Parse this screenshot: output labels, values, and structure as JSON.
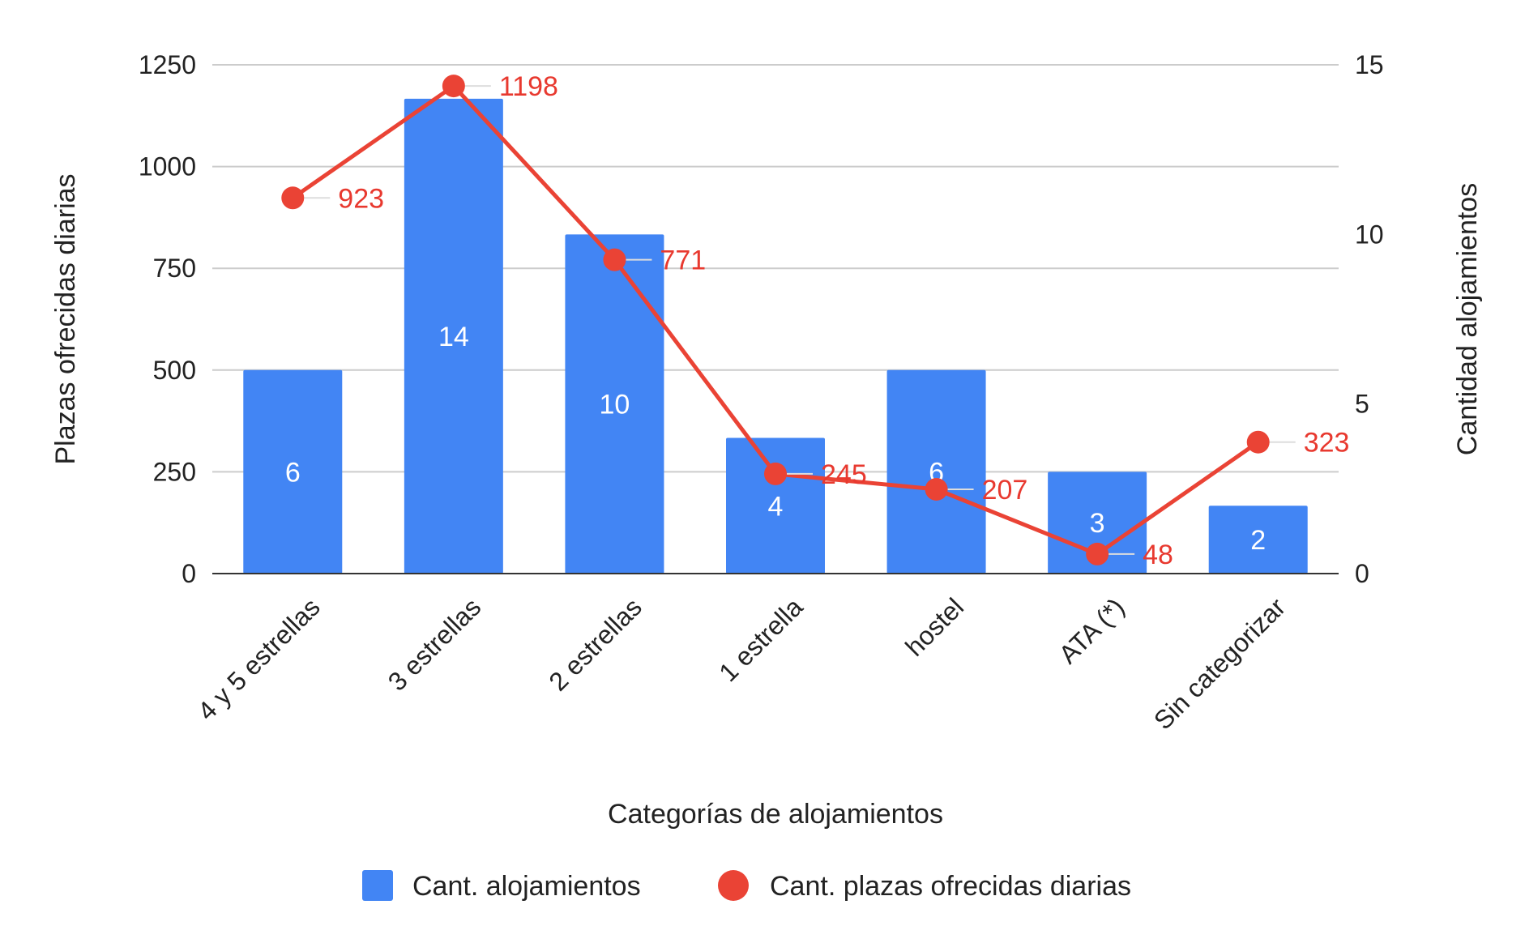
{
  "chart_data": {
    "type": "bar",
    "categories": [
      "4 y 5 estrellas",
      "3 estrellas",
      "2 estrellas",
      "1 estrella",
      "hostel",
      "ATA (*)",
      "Sin categorizar"
    ],
    "series": [
      {
        "name": "Cant. alojamientos",
        "type": "bar",
        "axis": "right",
        "color": "#4285f4",
        "values": [
          6,
          14,
          10,
          4,
          6,
          3,
          2
        ]
      },
      {
        "name": "Cant. plazas ofrecidas diarias",
        "type": "line",
        "axis": "left",
        "color": "#ea4335",
        "values": [
          923,
          1198,
          771,
          245,
          207,
          48,
          323
        ]
      }
    ],
    "xlabel": "Categorías de alojamientos",
    "ylabel_left": "Plazas ofrecidas diarias",
    "ylabel_right": "Cantidad alojamientos",
    "ylim_left": [
      0,
      1250
    ],
    "yticks_left": [
      "0",
      "250",
      "500",
      "750",
      "1000",
      "1250"
    ],
    "ylim_right": [
      0,
      15
    ],
    "yticks_right": [
      "0",
      "5",
      "10",
      "15"
    ],
    "grid": true,
    "legend_position": "bottom"
  }
}
